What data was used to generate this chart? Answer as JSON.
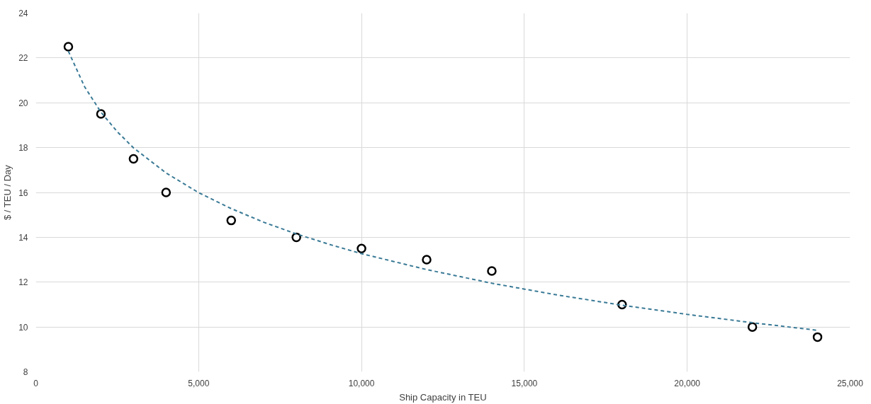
{
  "chart_data": {
    "type": "scatter",
    "xlabel": "Ship Capacity in TEU",
    "ylabel": "$ / TEU / Day",
    "xlim": [
      0,
      25000
    ],
    "xticks": [
      0,
      {
        "value": 5000,
        "label": "5,000"
      },
      {
        "value": 10000,
        "label": "10,000"
      },
      {
        "value": 15000,
        "label": "15,000"
      },
      {
        "value": 20000,
        "label": "20,000"
      },
      {
        "value": 25000,
        "label": "25,000"
      }
    ],
    "ylim": [
      8,
      24
    ],
    "yticks": [
      8,
      10,
      12,
      14,
      16,
      18,
      20,
      22,
      24
    ],
    "grid": true,
    "series": [
      {
        "marker": "circle",
        "color": "#000000",
        "x": [
          1000,
          2000,
          3000,
          4000,
          6000,
          8000,
          10000,
          12000,
          14000,
          18000,
          22000,
          24000
        ],
        "values": [
          22.5,
          19.5,
          17.5,
          16,
          14.75,
          14,
          13.5,
          13,
          12.5,
          11,
          10,
          9.55
        ]
      },
      {
        "type": "line",
        "line_style": "dashed",
        "color": "#3a7a96",
        "x": [
          1000,
          1500,
          2000,
          2500,
          3000,
          4000,
          5000,
          6000,
          7000,
          8000,
          9000,
          10000,
          12000,
          14000,
          16000,
          18000,
          20000,
          22000,
          24000
        ],
        "values": [
          22.3,
          20.71,
          19.58,
          18.71,
          17.99,
          16.87,
          15.99,
          15.28,
          14.67,
          14.15,
          13.69,
          13.27,
          12.56,
          11.95,
          11.43,
          10.97,
          10.56,
          10.19,
          9.85
        ]
      }
    ]
  }
}
